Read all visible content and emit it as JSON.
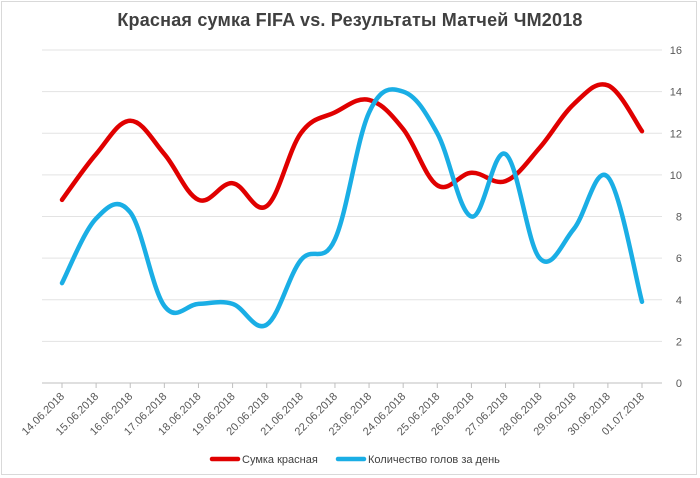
{
  "chart_data": {
    "type": "line",
    "title": "Красная  сумка FIFA vs. Результаты  Матчей ЧМ2018",
    "categories": [
      "14.06.2018",
      "15.06.2018",
      "16.06.2018",
      "17.06.2018",
      "18.06.2018",
      "19.06.2018",
      "20.06.2018",
      "21.06.2018",
      "22.06.2018",
      "23.06.2018",
      "24.06.2018",
      "25.06.2018",
      "26.06.2018",
      "27.06.2018",
      "28.06.2018",
      "29.06.2018",
      "30.06.2018",
      "01.07.2018"
    ],
    "ylim": [
      0,
      16
    ],
    "y_ticks": [
      "0",
      "2",
      "4",
      "6",
      "8",
      "10",
      "12",
      "14",
      "16"
    ],
    "y_axis_side": "right",
    "grid": true,
    "legend_position": "bottom",
    "series": [
      {
        "name": "Сумка красная",
        "color": "#e00000",
        "values": [
          8.8,
          11.0,
          12.6,
          11.0,
          8.8,
          9.6,
          8.5,
          12.0,
          13.0,
          13.6,
          12.2,
          9.5,
          10.1,
          9.7,
          11.3,
          13.4,
          14.3,
          12.1
        ]
      },
      {
        "name": "Количество голов за день",
        "color": "#1aaee5",
        "values": [
          4.8,
          7.9,
          8.2,
          3.7,
          3.8,
          3.8,
          2.8,
          5.9,
          6.9,
          13.0,
          14.0,
          12.0,
          8.0,
          11.0,
          6.0,
          7.4,
          9.9,
          3.9
        ]
      }
    ]
  }
}
